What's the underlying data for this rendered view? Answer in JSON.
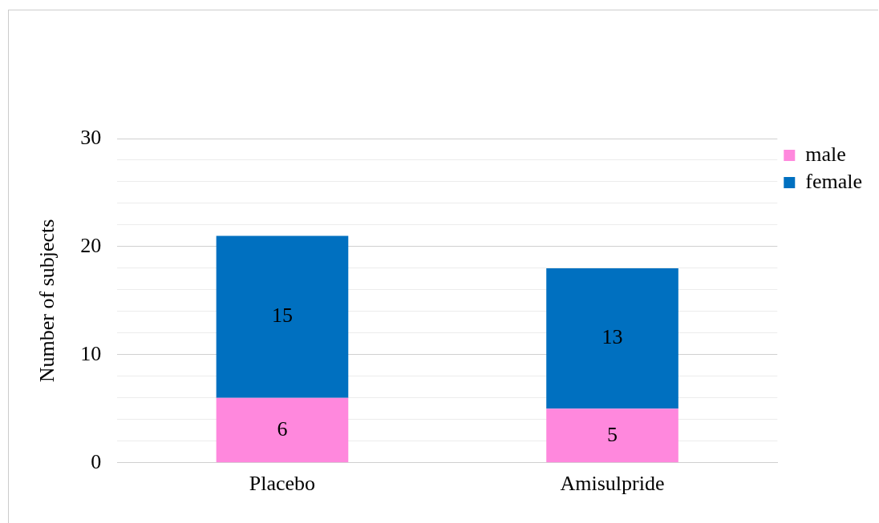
{
  "chart_data": {
    "type": "bar",
    "stacked": true,
    "ylabel": "Number of subjects",
    "categories": [
      "Placebo",
      "Amisulpride"
    ],
    "series": [
      {
        "name": "male",
        "color": "#ff88dd",
        "values": [
          6,
          5
        ]
      },
      {
        "name": "female",
        "color": "#0070c0",
        "values": [
          15,
          13
        ]
      }
    ],
    "ylim": [
      0,
      30
    ],
    "yticks": [
      0,
      {
        "value": 2,
        "label": null
      },
      {
        "value": 4,
        "label": null
      },
      {
        "value": 6,
        "label": null
      },
      {
        "value": 8,
        "label": null
      },
      10,
      {
        "value": 12,
        "label": null
      },
      {
        "value": 14,
        "label": null
      },
      {
        "value": 16,
        "label": null
      },
      {
        "value": 18,
        "label": null
      },
      20,
      {
        "value": 22,
        "label": null
      },
      {
        "value": 24,
        "label": null
      },
      {
        "value": 26,
        "label": null
      },
      {
        "value": 28,
        "label": null
      },
      30
    ],
    "grid": "y",
    "legend": "right",
    "data_labels": true
  }
}
